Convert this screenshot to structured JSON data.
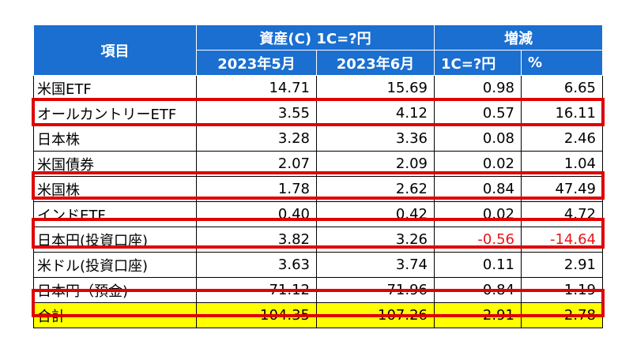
{
  "table": {
    "header": {
      "item": "項目",
      "assets_group": "資産(C) 1C=?円",
      "change_group": "増減",
      "sub": [
        "2023年5月",
        "2023年6月",
        "1C=?円",
        "%"
      ]
    },
    "rows": [
      {
        "name": "米国ETF",
        "may": "14.71",
        "jun": "15.69",
        "diff": "0.98",
        "pct": "6.65",
        "negative": false
      },
      {
        "name": "オールカントリーETF",
        "may": "3.55",
        "jun": "4.12",
        "diff": "0.57",
        "pct": "16.11",
        "negative": false
      },
      {
        "name": "日本株",
        "may": "3.28",
        "jun": "3.36",
        "diff": "0.08",
        "pct": "2.46",
        "negative": false
      },
      {
        "name": "米国債券",
        "may": "2.07",
        "jun": "2.09",
        "diff": "0.02",
        "pct": "1.04",
        "negative": false
      },
      {
        "name": "米国株",
        "may": "1.78",
        "jun": "2.62",
        "diff": "0.84",
        "pct": "47.49",
        "negative": false
      },
      {
        "name": "インドETF",
        "may": "0.40",
        "jun": "0.42",
        "diff": "0.02",
        "pct": "4.72",
        "negative": false
      },
      {
        "name": "日本円(投資口座)",
        "may": "3.82",
        "jun": "3.26",
        "diff": "-0.56",
        "pct": "-14.64",
        "negative": true
      },
      {
        "name": "米ドル(投資口座)",
        "may": "3.63",
        "jun": "3.74",
        "diff": "0.11",
        "pct": "2.91",
        "negative": false
      },
      {
        "name": "日本円（預金)",
        "may": "71.12",
        "jun": "71.96",
        "diff": "0.84",
        "pct": "1.19",
        "negative": false
      }
    ],
    "total": {
      "name": "合計",
      "may": "104.35",
      "jun": "107.26",
      "diff": "2.91",
      "pct": "2.78"
    }
  },
  "highlight_color": "#e00000",
  "header_color": "#1a6fd0",
  "total_row_color": "#ffff00",
  "negative_color": "#e8161b"
}
